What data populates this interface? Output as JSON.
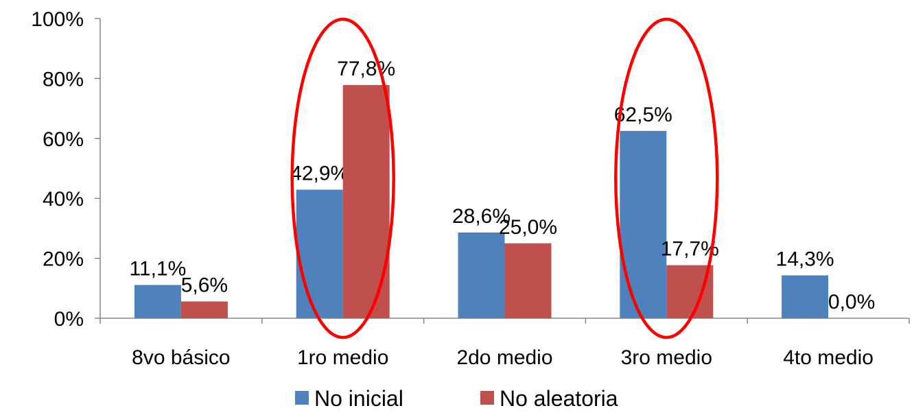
{
  "chart_data": {
    "type": "bar",
    "categories": [
      "8vo básico",
      "1ro medio",
      "2do medio",
      "3ro medio",
      "4to medio"
    ],
    "series": [
      {
        "name": "No inicial",
        "color": "#4F81BD",
        "values": [
          11.1,
          42.9,
          28.6,
          62.5,
          14.3
        ],
        "labels": [
          "11,1%",
          "42,9%",
          "28,6%",
          "62,5%",
          "14,3%"
        ]
      },
      {
        "name": "No aleatoria",
        "color": "#C0504D",
        "values": [
          5.6,
          77.8,
          25.0,
          17.7,
          0.0
        ],
        "labels": [
          "5,6%",
          "77,8%",
          "25,0%",
          "17,7%",
          "0,0%"
        ]
      }
    ],
    "y_ticks": [
      "0%",
      "20%",
      "40%",
      "60%",
      "80%",
      "100%"
    ],
    "ylim": [
      0,
      100
    ],
    "grid": false,
    "legend": "bottom",
    "highlighted_categories": [
      "1ro medio",
      "3ro medio"
    ],
    "highlight_color": "#FF0000"
  }
}
